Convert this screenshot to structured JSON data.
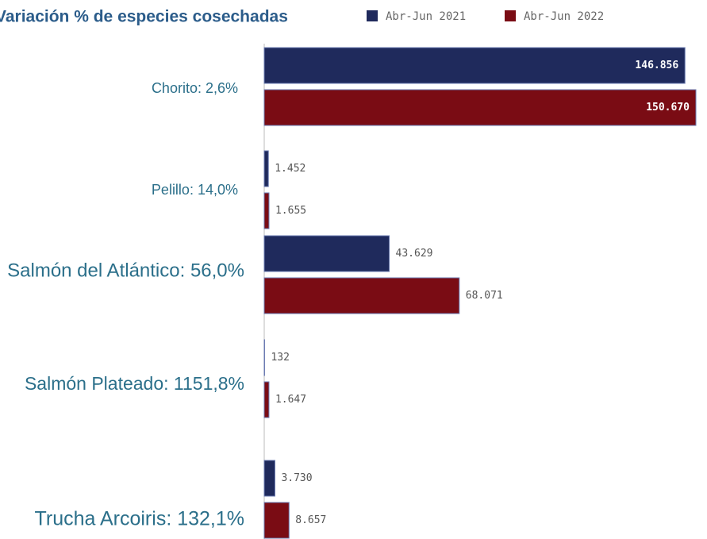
{
  "chart_data": {
    "type": "bar",
    "orientation": "horizontal",
    "title": "Variación % de especies cosechadas",
    "categories": [
      "Chorito: 2,6%",
      "Pelillo: 14,0%",
      "Salmón del Atlántico: 56,0%",
      "Salmón Plateado: 1151,8%",
      "Trucha Arcoiris: 132,1%"
    ],
    "series": [
      {
        "name": "Abr-Jun 2021",
        "color": "#1f2a5c",
        "values": [
          146856,
          1452,
          43629,
          132,
          3730
        ],
        "value_labels": [
          "146.856",
          "1.452",
          "43.629",
          "132",
          "3.730"
        ]
      },
      {
        "name": "Abr-Jun 2022",
        "color": "#7a0c14",
        "values": [
          150670,
          1655,
          68071,
          1647,
          8657
        ],
        "value_labels": [
          "150.670",
          "1.655",
          "68.071",
          "1.647",
          "8.657"
        ]
      }
    ]
  }
}
